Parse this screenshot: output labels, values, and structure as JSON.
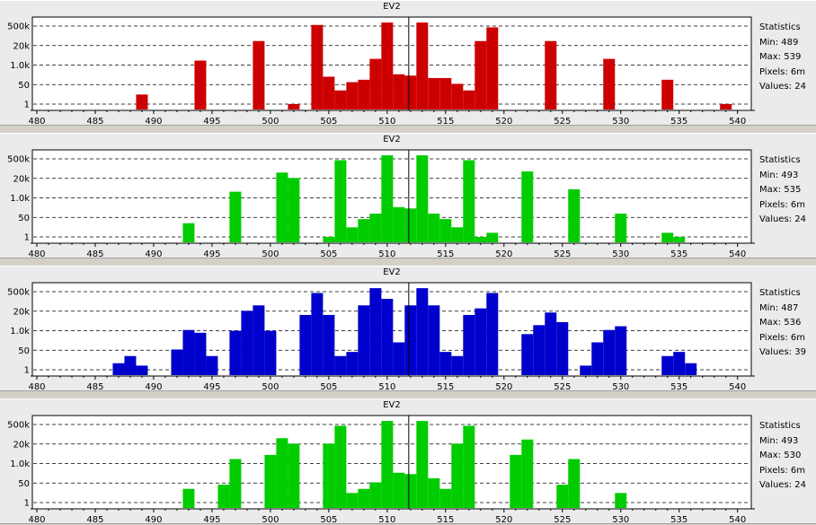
{
  "chart_data": [
    {
      "type": "bar",
      "title": "EV2",
      "color": "#cc0000",
      "xlim": [
        480,
        540
      ],
      "x_ticks": [
        480,
        485,
        490,
        495,
        500,
        505,
        510,
        515,
        520,
        525,
        530,
        535,
        540
      ],
      "y_ticks": [
        "500k",
        "20k",
        "1.0k",
        "50",
        "1"
      ],
      "y_scale": "log",
      "grid": "horizontal-dashed",
      "marker_x": 512,
      "bins": [
        489,
        494,
        499,
        502,
        504,
        505,
        506,
        507,
        508,
        509,
        510,
        511,
        512,
        513,
        514,
        515,
        516,
        517,
        518,
        519,
        524,
        529,
        534,
        539
      ],
      "counts": [
        5,
        1500,
        40000,
        1,
        600000,
        100,
        10,
        40,
        60,
        2000,
        900000,
        150,
        120,
        900000,
        80,
        80,
        30,
        10,
        40000,
        400000,
        40000,
        2000,
        60,
        1
      ],
      "stats": {
        "heading": "Statistics",
        "min": "Min: 489",
        "max": "Max: 539",
        "pixels": "Pixels: 6m",
        "values": "Values: 24"
      }
    },
    {
      "type": "bar",
      "title": "EV2",
      "color": "#00cc00",
      "xlim": [
        480,
        540
      ],
      "x_ticks": [
        480,
        485,
        490,
        495,
        500,
        505,
        510,
        515,
        520,
        525,
        530,
        535,
        540
      ],
      "y_ticks": [
        "500k",
        "20k",
        "1.0k",
        "50",
        "1"
      ],
      "y_scale": "log",
      "grid": "horizontal-dashed",
      "marker_x": 512,
      "bins": [
        493,
        497,
        501,
        502,
        505,
        506,
        507,
        508,
        509,
        510,
        511,
        512,
        513,
        514,
        515,
        516,
        517,
        518,
        519,
        522,
        526,
        530,
        534,
        535
      ],
      "counts": [
        10,
        2000,
        50000,
        20000,
        1,
        400000,
        5,
        20,
        50,
        900000,
        150,
        120,
        900000,
        50,
        20,
        5,
        400000,
        1,
        2,
        60000,
        3000,
        50,
        2,
        1
      ],
      "stats": {
        "heading": "Statistics",
        "min": "Min: 493",
        "max": "Max: 535",
        "pixels": "Pixels: 6m",
        "values": "Values: 24"
      }
    },
    {
      "type": "bar",
      "title": "EV2",
      "color": "#0000cc",
      "xlim": [
        480,
        540
      ],
      "x_ticks": [
        480,
        485,
        490,
        495,
        500,
        505,
        510,
        515,
        520,
        525,
        530,
        535,
        540
      ],
      "y_ticks": [
        "500k",
        "20k",
        "1.0k",
        "50",
        "1"
      ],
      "y_scale": "log",
      "grid": "horizontal-dashed",
      "marker_x": 512,
      "bins": [
        487,
        488,
        489,
        492,
        493,
        494,
        495,
        497,
        498,
        499,
        500,
        503,
        504,
        505,
        506,
        507,
        508,
        509,
        510,
        511,
        512,
        513,
        514,
        515,
        516,
        517,
        518,
        519,
        522,
        523,
        524,
        525,
        527,
        528,
        529,
        530,
        534,
        535,
        536
      ],
      "counts": [
        3,
        10,
        2,
        30,
        800,
        500,
        10,
        700,
        20000,
        50000,
        700,
        10000,
        400000,
        10000,
        10,
        20,
        50000,
        900000,
        150000,
        100,
        50000,
        900000,
        50000,
        20,
        10,
        10000,
        30000,
        400000,
        400,
        1800,
        15000,
        3000,
        2,
        100,
        800,
        1500,
        10,
        20,
        3
      ],
      "stats": {
        "heading": "Statistics",
        "min": "Min: 487",
        "max": "Max: 536",
        "pixels": "Pixels: 6m",
        "values": "Values: 39"
      }
    },
    {
      "type": "bar",
      "title": "EV2",
      "color": "#00cc00",
      "xlim": [
        480,
        540
      ],
      "x_ticks": [
        480,
        485,
        490,
        495,
        500,
        505,
        510,
        515,
        520,
        525,
        530,
        535,
        540
      ],
      "y_ticks": [
        "500k",
        "20k",
        "1.0k",
        "50",
        "1"
      ],
      "y_scale": "log",
      "grid": "horizontal-dashed",
      "marker_x": 512,
      "bins": [
        493,
        496,
        497,
        500,
        501,
        502,
        505,
        506,
        507,
        508,
        509,
        510,
        511,
        512,
        513,
        514,
        515,
        516,
        517,
        521,
        522,
        525,
        526,
        530
      ],
      "counts": [
        10,
        20,
        1500,
        3000,
        50000,
        20000,
        20000,
        400000,
        5,
        10,
        30,
        900000,
        150,
        120,
        900000,
        60,
        10,
        20000,
        400000,
        3000,
        40000,
        20,
        1500,
        5
      ],
      "stats": {
        "heading": "Statistics",
        "min": "Min: 493",
        "max": "Max: 530",
        "pixels": "Pixels: 6m",
        "values": "Values: 24"
      }
    }
  ]
}
